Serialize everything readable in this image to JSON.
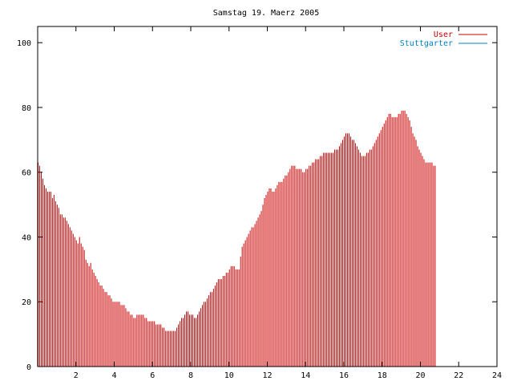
{
  "chart_data": {
    "type": "bar",
    "title": "Samstag 19. Maerz 2005",
    "xlabel": "",
    "ylabel": "",
    "xlim": [
      0,
      24
    ],
    "ylim": [
      0,
      105
    ],
    "x_ticks": [
      2,
      4,
      6,
      8,
      10,
      12,
      14,
      16,
      18,
      20,
      22,
      24
    ],
    "y_ticks": [
      0,
      20,
      40,
      60,
      80,
      100
    ],
    "grid": false,
    "legend_position": "top-right",
    "bin_minutes": 5,
    "series": [
      {
        "name": "User",
        "color": "#cc0000",
        "values": [
          63,
          62,
          60,
          58,
          56,
          55,
          54,
          54,
          54,
          52,
          53,
          51,
          50,
          49,
          47,
          47,
          46,
          46,
          45,
          44,
          43,
          42,
          41,
          40,
          39,
          38,
          40,
          38,
          37,
          36,
          33,
          32,
          31,
          32,
          30,
          29,
          28,
          27,
          26,
          25,
          25,
          24,
          23,
          23,
          22,
          22,
          21,
          20,
          20,
          20,
          20,
          20,
          19,
          19,
          19,
          18,
          17,
          17,
          16,
          16,
          15,
          15,
          16,
          16,
          16,
          16,
          16,
          15,
          15,
          14,
          14,
          14,
          14,
          14,
          13,
          13,
          13,
          13,
          12,
          12,
          11,
          11,
          11,
          11,
          11,
          11,
          11,
          12,
          13,
          14,
          15,
          15,
          16,
          17,
          17,
          16,
          16,
          16,
          15,
          15,
          16,
          17,
          18,
          19,
          20,
          20,
          21,
          22,
          23,
          23,
          24,
          25,
          26,
          27,
          27,
          27,
          28,
          28,
          29,
          29,
          30,
          31,
          31,
          31,
          30,
          30,
          30,
          34,
          37,
          38,
          39,
          40,
          41,
          42,
          43,
          43,
          44,
          45,
          46,
          47,
          48,
          50,
          52,
          53,
          54,
          55,
          55,
          54,
          54,
          55,
          56,
          57,
          57,
          57,
          58,
          59,
          59,
          60,
          61,
          62,
          62,
          62,
          61,
          61,
          61,
          61,
          60,
          60,
          61,
          61,
          62,
          62,
          63,
          63,
          64,
          64,
          64,
          65,
          65,
          66,
          66,
          66,
          66,
          66,
          66,
          66,
          67,
          67,
          67,
          68,
          69,
          70,
          71,
          72,
          72,
          72,
          71,
          70,
          70,
          69,
          68,
          67,
          66,
          65,
          65,
          65,
          66,
          66,
          67,
          67,
          68,
          69,
          70,
          71,
          72,
          73,
          74,
          75,
          76,
          77,
          78,
          78,
          77,
          77,
          77,
          77,
          78,
          78,
          79,
          79,
          79,
          78,
          77,
          76,
          74,
          72,
          71,
          70,
          68,
          67,
          66,
          65,
          64,
          63,
          63,
          63,
          63,
          63,
          62,
          62
        ]
      },
      {
        "name": "Stuttgarter",
        "color": "#0080c0",
        "values": []
      }
    ]
  }
}
